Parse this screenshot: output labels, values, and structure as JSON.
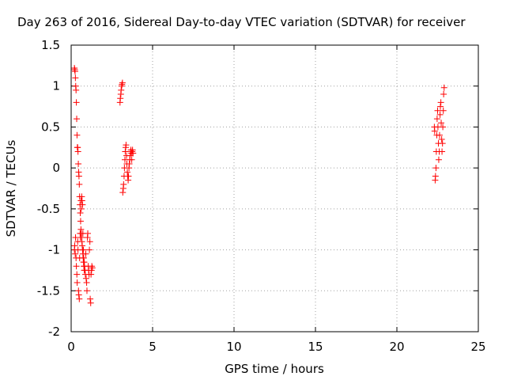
{
  "chart_data": {
    "type": "scatter",
    "title": "Day 263 of 2016, Sidereal Day-to-day VTEC variation (SDTVAR) for receiver",
    "xlabel": "GPS time / hours",
    "ylabel": "SDTVAR / TECUs",
    "xlim": [
      0,
      25
    ],
    "ylim": [
      -2,
      1.5
    ],
    "xticks": [
      0,
      5,
      10,
      15,
      20,
      25
    ],
    "xtick_labels": [
      "0",
      "5",
      "10",
      "15",
      "20",
      "25"
    ],
    "yticks": [
      -2,
      -1.5,
      -1,
      -0.5,
      0,
      0.5,
      1,
      1.5
    ],
    "ytick_labels": [
      "-2",
      "-1.5",
      "-1",
      "-0.5",
      "0",
      "0.5",
      "1",
      "1.5"
    ],
    "grid": true,
    "legend": "none",
    "marker": "plus",
    "color": "#ff0000",
    "series": [
      {
        "x": [
          0.2,
          0.22,
          0.25,
          0.27,
          0.3,
          0.32,
          0.35,
          0.37,
          0.4,
          0.42,
          0.45,
          0.47,
          0.5,
          0.52,
          0.55,
          0.57,
          0.6,
          0.62,
          0.65,
          0.67,
          0.7,
          0.72,
          0.75,
          0.77,
          0.8,
          0.82,
          0.85,
          0.87,
          0.9,
          0.92,
          0.95,
          0.97,
          1.0,
          1.02,
          1.05,
          1.07,
          1.1,
          1.12,
          1.15,
          1.17,
          1.2,
          1.22,
          1.25,
          1.27,
          1.3
        ],
        "y": [
          -1.0,
          -0.95,
          -1.05,
          -0.85,
          -1.1,
          -1.2,
          -1.3,
          -1.4,
          -0.9,
          -1.0,
          -1.5,
          -1.55,
          -1.6,
          -1.1,
          -0.8,
          -0.85,
          -0.4,
          -0.5,
          -0.35,
          -0.4,
          -0.45,
          -0.8,
          -1.0,
          -1.1,
          -1.15,
          -1.2,
          -1.25,
          -1.3,
          -1.05,
          -1.35,
          -1.4,
          -1.5,
          -0.85,
          -0.8,
          -1.2,
          -1.25,
          -1.3,
          -1.0,
          -0.9,
          -1.6,
          -1.65,
          -1.3,
          -1.25,
          -1.2,
          -1.22
        ]
      },
      {
        "x": [
          0.2,
          0.22,
          0.24,
          0.26,
          0.28,
          0.3,
          0.32,
          0.34,
          0.36,
          0.38,
          0.4,
          0.42,
          0.44,
          0.46,
          0.48,
          0.5,
          0.52,
          0.54,
          0.56,
          0.58,
          0.6,
          0.62,
          0.64,
          0.66,
          0.68,
          0.7,
          0.72,
          0.74,
          0.76,
          0.78,
          0.8
        ],
        "y": [
          1.22,
          1.2,
          1.18,
          1.1,
          1.0,
          0.95,
          0.8,
          0.6,
          0.4,
          0.25,
          0.25,
          0.2,
          0.05,
          -0.05,
          -0.1,
          -0.2,
          -0.35,
          -0.45,
          -0.55,
          -0.65,
          -0.75,
          -0.8,
          -0.85,
          -0.9,
          -0.95,
          -1.0,
          -1.05,
          -1.1,
          -1.15,
          -1.2,
          -1.25
        ]
      },
      {
        "x": [
          3.0,
          3.02,
          3.05,
          3.07,
          3.1,
          3.12,
          3.15,
          3.17,
          3.2,
          3.22,
          3.25,
          3.27,
          3.3,
          3.32,
          3.35,
          3.37,
          3.4,
          3.42,
          3.45,
          3.47,
          3.5,
          3.52,
          3.55,
          3.57,
          3.6,
          3.62,
          3.65,
          3.67,
          3.7,
          3.72,
          3.75,
          3.77,
          3.8
        ],
        "y": [
          0.8,
          0.85,
          0.9,
          0.95,
          1.0,
          1.02,
          1.04,
          -0.3,
          -0.25,
          -0.2,
          -0.1,
          0.0,
          0.1,
          0.2,
          0.25,
          0.28,
          0.15,
          0.05,
          -0.05,
          -0.1,
          -0.15,
          -0.1,
          0.0,
          0.05,
          0.1,
          0.15,
          0.2,
          0.22,
          0.18,
          0.1,
          0.2,
          0.22,
          0.18
        ]
      },
      {
        "x": [
          22.3,
          22.32,
          22.35,
          22.37,
          22.4,
          22.42,
          22.45,
          22.47,
          22.5,
          22.52,
          22.55,
          22.57,
          22.6,
          22.62,
          22.65,
          22.67,
          22.7,
          22.72,
          22.75,
          22.77,
          22.8,
          22.82,
          22.85,
          22.87,
          22.9
        ],
        "y": [
          0.5,
          0.45,
          -0.15,
          -0.1,
          0.0,
          0.2,
          0.4,
          0.6,
          0.7,
          0.5,
          0.3,
          0.1,
          0.2,
          0.4,
          0.65,
          0.75,
          0.8,
          0.55,
          0.35,
          0.2,
          0.3,
          0.5,
          0.7,
          0.9,
          0.98
        ]
      }
    ]
  }
}
